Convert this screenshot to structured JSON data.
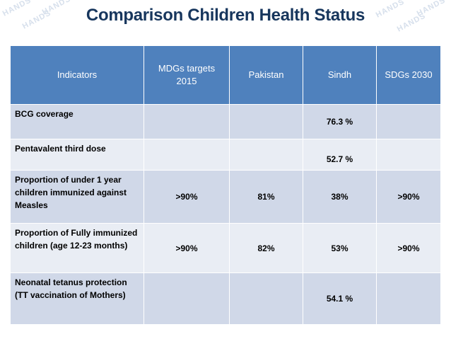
{
  "page": {
    "title": "Comparison Children Health Status",
    "watermark": "HANDS"
  },
  "table": {
    "headers": [
      "Indicators",
      "MDGs targets 2015",
      "Pakistan",
      "Sindh",
      "SDGs 2030"
    ],
    "rows": [
      [
        "BCG coverage",
        "",
        "",
        "76.3 %",
        ""
      ],
      [
        "Pentavalent third dose",
        "",
        "",
        "52.7 %",
        ""
      ],
      [
        "Proportion of under 1 year children immunized against Measles",
        ">90%",
        "81%",
        "38%",
        ">90%"
      ],
      [
        "Proportion of Fully immunized children (age 12-23 months)",
        ">90%",
        "82%",
        "53%",
        ">90%"
      ],
      [
        "Neonatal  tetanus protection (TT vaccination of Mothers)",
        "",
        "",
        "54.1 %",
        ""
      ]
    ]
  },
  "colors": {
    "title": "#17365d",
    "header_bg": "#4f81bd",
    "row_dark": "#d0d8e8",
    "row_light": "#e9edf4"
  }
}
